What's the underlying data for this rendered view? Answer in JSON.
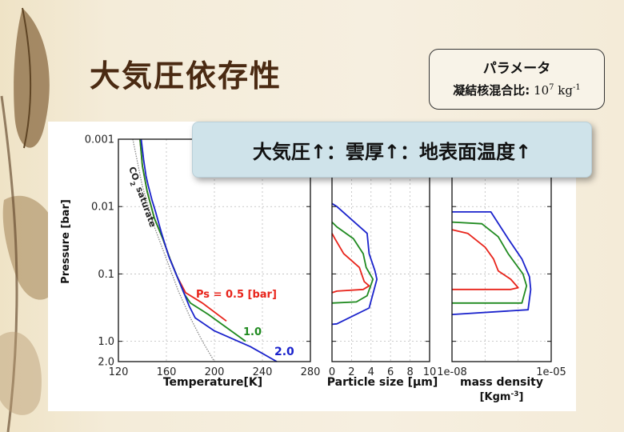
{
  "slide": {
    "title": "大気圧依存性",
    "banner": "大気圧↑：雲厚↑：地表面温度↑",
    "parameter_box": {
      "heading": "パラメータ",
      "label": "凝結核混合比:",
      "value": "10",
      "value_exp": "7",
      "unit": "kg",
      "unit_exp": "-1"
    }
  },
  "colors": {
    "ps05": "#e8231a",
    "ps10": "#1f8a1f",
    "ps20": "#1a22cc",
    "co2": "#888888"
  },
  "chart_data": [
    {
      "type": "line",
      "xlabel": "Temperature[K]",
      "ylabel": "Pressure [bar]",
      "xlim": [
        120,
        280
      ],
      "ylim": [
        0.001,
        2.0
      ],
      "y_scale": "log-reversed",
      "xticks": [
        "120",
        "160",
        "200",
        "240",
        "280"
      ],
      "yticks": [
        "0.001",
        "0.01",
        "0.1",
        "1.0",
        "2.0"
      ],
      "grid": true,
      "annotation": "CO2 saturate",
      "series": [
        {
          "name": "Ps = 0.5 [bar]",
          "label": "Ps = 0.5 [bar]",
          "points": [
            [
              138,
              0.001
            ],
            [
              140,
              0.0025
            ],
            [
              144,
              0.006
            ],
            [
              150,
              0.015
            ],
            [
              157,
              0.03
            ],
            [
              163,
              0.06
            ],
            [
              169,
              0.11
            ],
            [
              176,
              0.19
            ],
            [
              190,
              0.27
            ],
            [
              210,
              0.5
            ]
          ]
        },
        {
          "name": "1.0",
          "label": "1.0",
          "points": [
            [
              138,
              0.001
            ],
            [
              140,
              0.0025
            ],
            [
              144,
              0.006
            ],
            [
              150,
              0.015
            ],
            [
              157,
              0.03
            ],
            [
              163,
              0.06
            ],
            [
              169,
              0.11
            ],
            [
              175,
              0.2
            ],
            [
              180,
              0.27
            ],
            [
              195,
              0.4
            ],
            [
              226,
              1.0
            ]
          ]
        },
        {
          "name": "2.0",
          "label": "2.0",
          "points": [
            [
              139,
              0.001
            ],
            [
              141,
              0.002
            ],
            [
              143,
              0.0035
            ],
            [
              145,
              0.005
            ],
            [
              148,
              0.008
            ],
            [
              151,
              0.012
            ],
            [
              156,
              0.025
            ],
            [
              162,
              0.055
            ],
            [
              168,
              0.1
            ],
            [
              174,
              0.18
            ],
            [
              179,
              0.3
            ],
            [
              184,
              0.45
            ],
            [
              200,
              0.7
            ],
            [
              230,
              1.2
            ],
            [
              252,
              2.0
            ]
          ]
        },
        {
          "name": "CO2 saturate",
          "points": [
            [
              132,
              0.001
            ],
            [
              140,
              0.005
            ],
            [
              150,
              0.02
            ],
            [
              160,
              0.06
            ],
            [
              170,
              0.18
            ],
            [
              180,
              0.45
            ],
            [
              190,
              1.0
            ],
            [
              200,
              2.0
            ]
          ]
        }
      ]
    },
    {
      "type": "line",
      "xlabel": "Particle size [μm]",
      "xlim": [
        0,
        10
      ],
      "ylim": [
        0.001,
        2.0
      ],
      "y_scale": "log-reversed",
      "xticks": [
        "0",
        "2",
        "4",
        "6",
        "8",
        "10"
      ],
      "grid": true,
      "series": [
        {
          "name": "0.5",
          "points": [
            [
              0,
              0.025
            ],
            [
              0.3,
              0.03
            ],
            [
              1.2,
              0.05
            ],
            [
              2.8,
              0.08
            ],
            [
              3.3,
              0.13
            ],
            [
              3.8,
              0.15
            ],
            [
              3.2,
              0.17
            ],
            [
              0.5,
              0.18
            ],
            [
              0,
              0.19
            ]
          ]
        },
        {
          "name": "1.0",
          "points": [
            [
              0,
              0.017
            ],
            [
              0.5,
              0.02
            ],
            [
              2.2,
              0.03
            ],
            [
              3.2,
              0.05
            ],
            [
              3.5,
              0.08
            ],
            [
              4.2,
              0.12
            ],
            [
              3.6,
              0.21
            ],
            [
              2.5,
              0.26
            ],
            [
              0,
              0.27
            ]
          ]
        },
        {
          "name": "2.0",
          "points": [
            [
              0,
              0.009
            ],
            [
              0.5,
              0.01
            ],
            [
              3.6,
              0.025
            ],
            [
              3.8,
              0.05
            ],
            [
              4.4,
              0.09
            ],
            [
              4.6,
              0.12
            ],
            [
              3.8,
              0.32
            ],
            [
              0.5,
              0.55
            ],
            [
              0,
              0.56
            ]
          ]
        }
      ]
    },
    {
      "type": "line",
      "xlabel": "mass density [Kgm-3]",
      "xlim": [
        1e-08,
        1e-05
      ],
      "x_scale": "log",
      "ylim": [
        0.001,
        2.0
      ],
      "y_scale": "log-reversed",
      "xticks": [
        "1e-08",
        "1e-05"
      ],
      "grid": true,
      "series": [
        {
          "name": "0.5",
          "points": [
            [
              1e-08,
              0.022
            ],
            [
              3e-08,
              0.025
            ],
            [
              1e-07,
              0.04
            ],
            [
              1.8e-07,
              0.06
            ],
            [
              2.5e-07,
              0.09
            ],
            [
              6e-07,
              0.12
            ],
            [
              1e-06,
              0.16
            ],
            [
              6e-07,
              0.17
            ],
            [
              1e-08,
              0.17
            ]
          ]
        },
        {
          "name": "1.0",
          "points": [
            [
              1e-08,
              0.017
            ],
            [
              8e-08,
              0.018
            ],
            [
              2.5e-07,
              0.028
            ],
            [
              5e-07,
              0.05
            ],
            [
              1.4e-06,
              0.1
            ],
            [
              1.8e-06,
              0.15
            ],
            [
              1.3e-06,
              0.27
            ],
            [
              1e-08,
              0.27
            ]
          ]
        },
        {
          "name": "2.0",
          "points": [
            [
              1e-08,
              0.012
            ],
            [
              1.5e-07,
              0.012
            ],
            [
              5e-07,
              0.03
            ],
            [
              1.3e-06,
              0.06
            ],
            [
              2.2e-06,
              0.11
            ],
            [
              2.4e-06,
              0.17
            ],
            [
              2e-06,
              0.34
            ],
            [
              1e-08,
              0.4
            ]
          ]
        }
      ]
    }
  ],
  "panel_text": {
    "temp_xlabel": "Temperature[K]",
    "size_xlabel": "Particle size [μm]",
    "mass_xlabel_1": "mass density",
    "mass_xlabel_2": "[Kgm",
    "mass_xlabel_exp": "-3",
    "mass_xlabel_end": "]",
    "ylabel": "Pressure [bar]",
    "co2_1": "CO",
    "co2_sub": "2",
    "co2_2": " saturate",
    "lab_05": "Ps = 0.5 [bar]",
    "lab_10": "1.0",
    "lab_20": "2.0"
  }
}
